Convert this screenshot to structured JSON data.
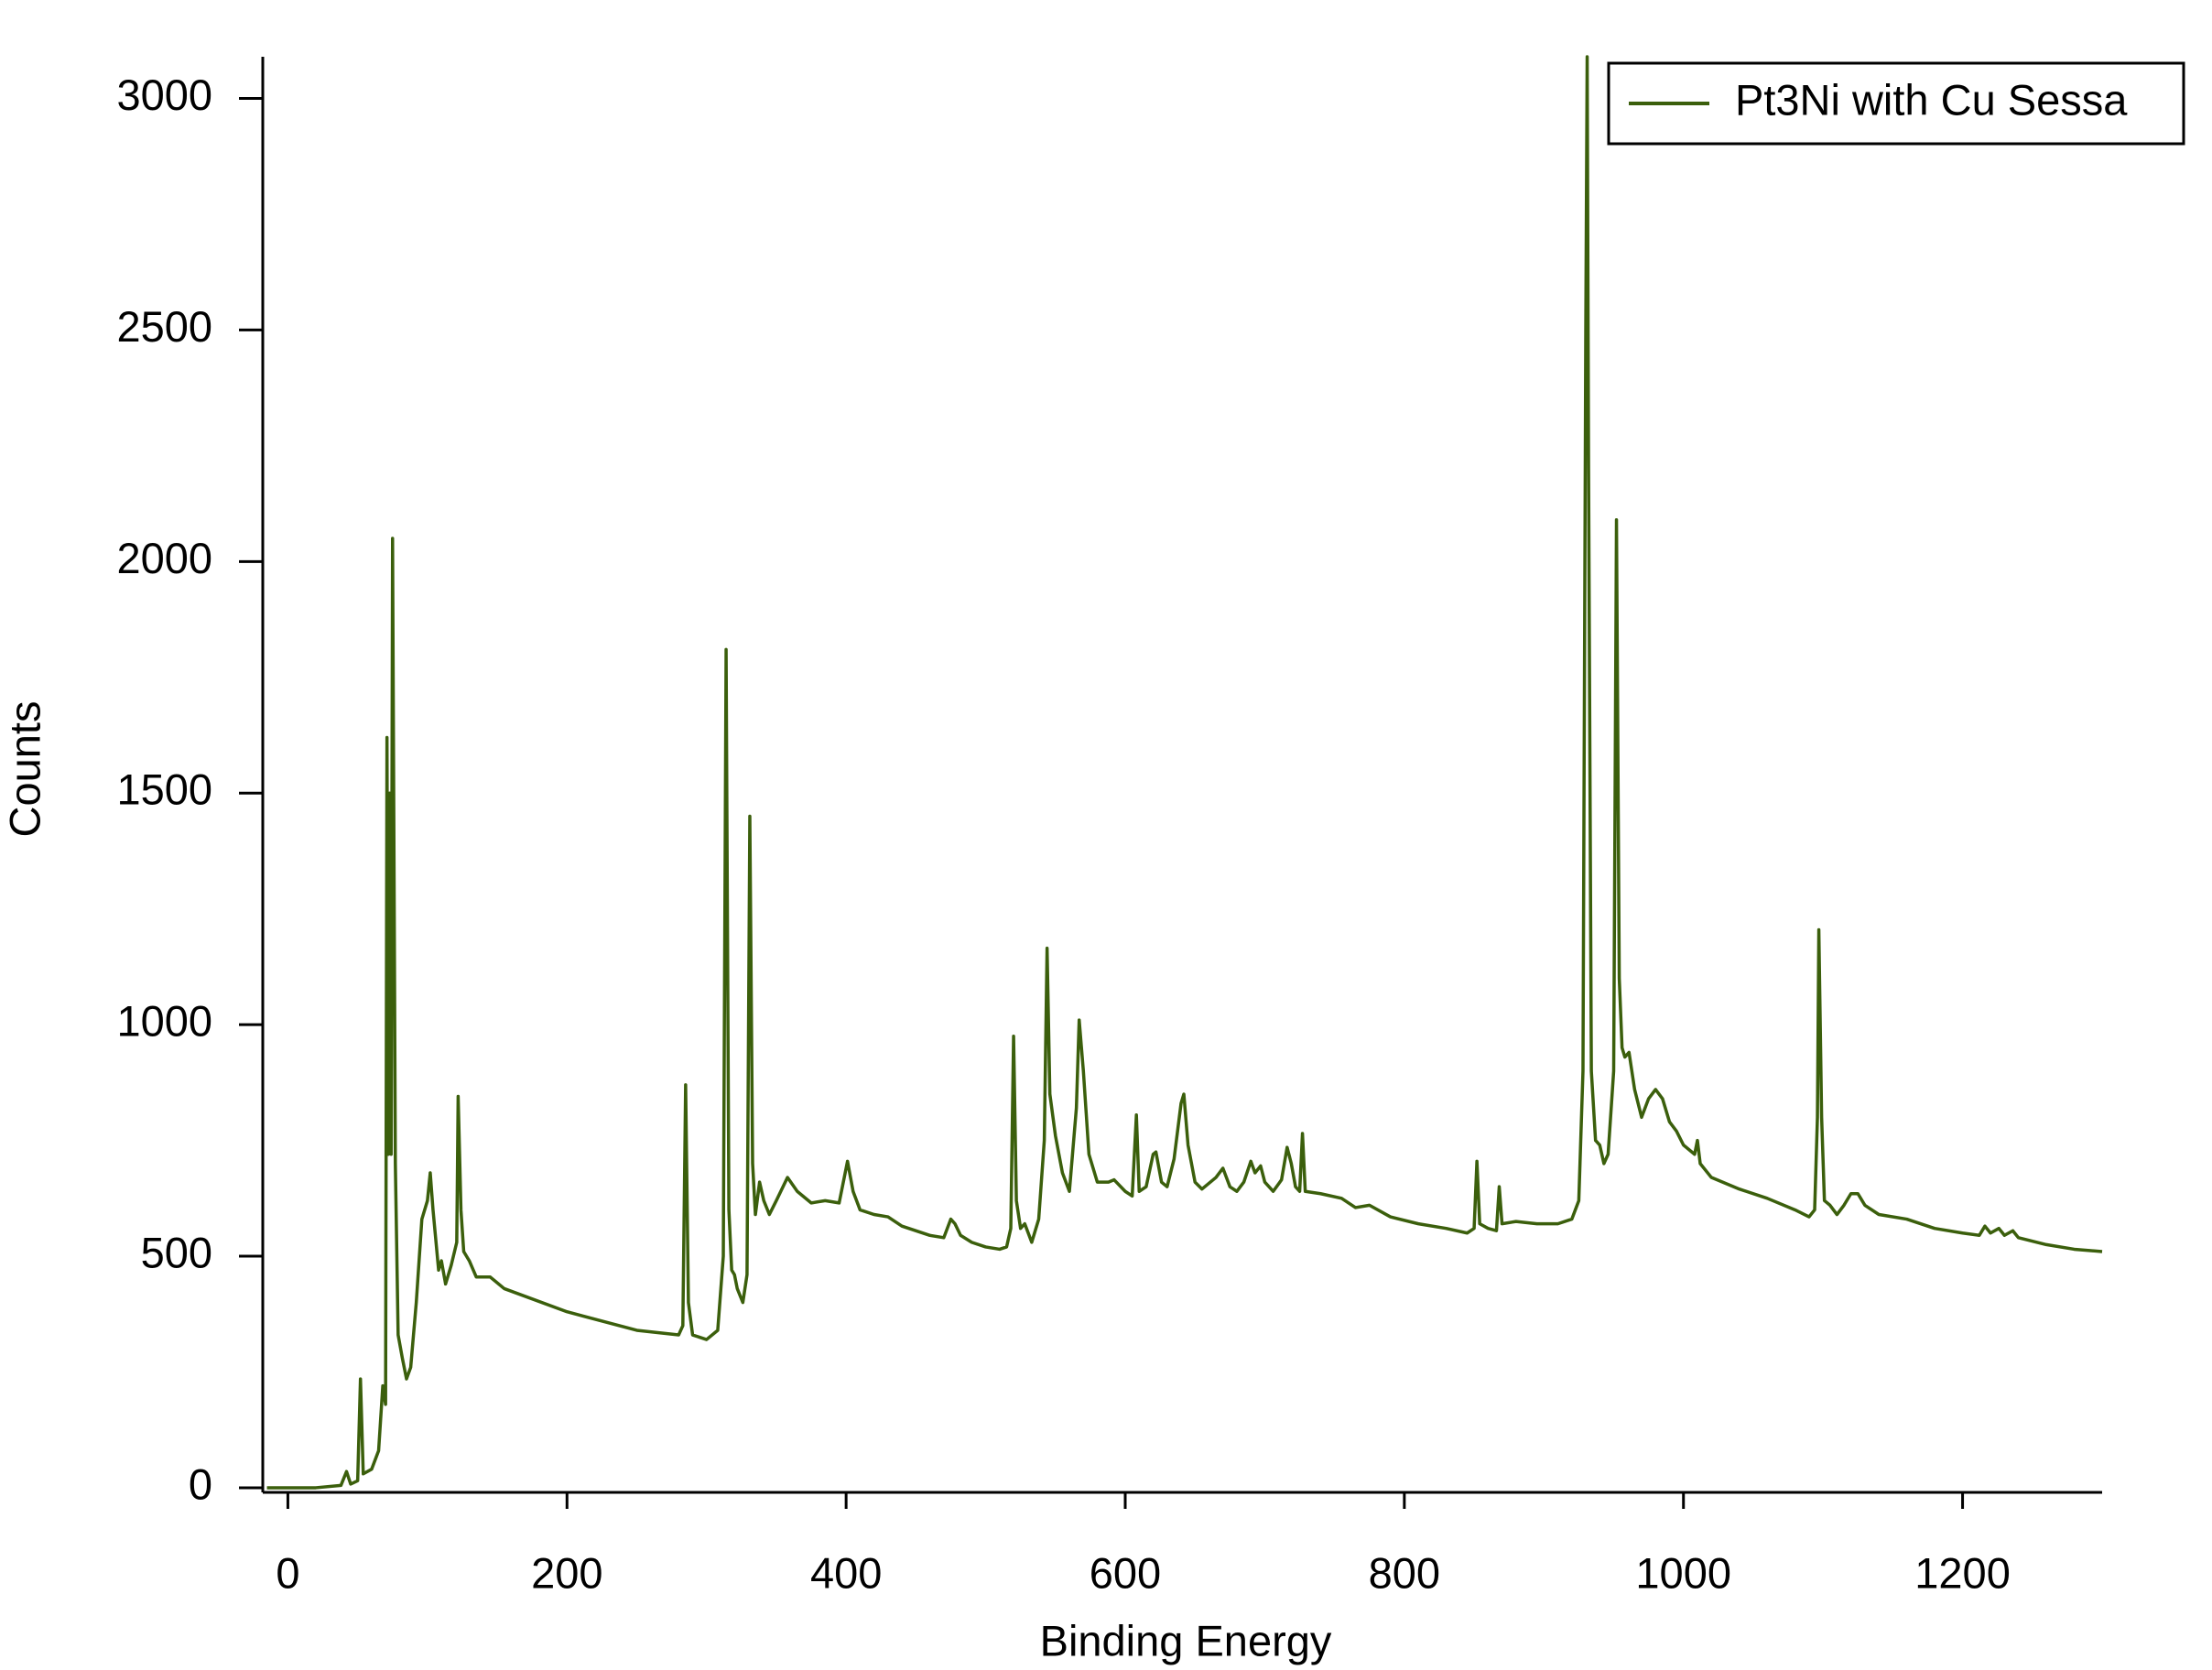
{
  "chart_data": {
    "type": "line",
    "x_label": "Binding Energy",
    "y_label": "Counts",
    "xlim": [
      -18,
      1300
    ],
    "ylim": [
      -10,
      3090
    ],
    "xticks": [
      0,
      200,
      400,
      600,
      800,
      1000,
      1200
    ],
    "yticks": [
      0,
      500,
      1000,
      1500,
      2000,
      2500,
      3000
    ],
    "legend": "top-right",
    "x": [
      -15,
      20,
      38,
      42,
      45,
      50,
      52,
      54,
      60,
      65,
      68,
      70,
      71,
      72,
      73,
      74,
      75,
      77,
      79,
      82,
      85,
      88,
      92,
      96,
      100,
      102,
      104,
      108,
      110,
      113,
      117,
      121,
      122,
      124,
      126,
      130,
      135,
      145,
      155,
      200,
      250,
      280,
      283,
      285,
      287,
      290,
      300,
      308,
      312,
      314,
      316,
      318,
      320,
      322,
      326,
      329,
      331,
      333,
      335,
      338,
      341,
      345,
      350,
      358,
      365,
      375,
      385,
      395,
      401,
      405,
      410,
      420,
      430,
      440,
      460,
      470,
      475,
      478,
      482,
      490,
      500,
      510,
      515,
      518,
      520,
      522,
      525,
      528,
      533,
      538,
      542,
      544,
      546,
      550,
      555,
      560,
      565,
      567,
      570,
      574,
      580,
      588,
      592,
      600,
      605,
      608,
      610,
      615,
      620,
      622,
      626,
      630,
      635,
      640,
      642,
      645,
      650,
      655,
      665,
      670,
      675,
      680,
      685,
      690,
      693,
      697,
      700,
      706,
      712,
      716,
      719,
      722,
      725,
      727,
      729,
      740,
      755,
      765,
      775,
      790,
      810,
      830,
      845,
      850,
      852,
      854,
      860,
      866,
      868,
      870,
      880,
      895,
      910,
      920,
      925,
      928,
      930,
      931,
      932,
      934,
      937,
      940,
      943,
      946,
      950,
      952,
      954,
      956,
      958,
      961,
      965,
      970,
      975,
      980,
      985,
      990,
      995,
      1000,
      1008,
      1010,
      1012,
      1020,
      1040,
      1060,
      1080,
      1090,
      1094,
      1096,
      1097,
      1099,
      1101,
      1105,
      1110,
      1115,
      1120,
      1125,
      1130,
      1140,
      1160,
      1180,
      1200,
      1212,
      1216,
      1220,
      1226,
      1230,
      1236,
      1240,
      1260,
      1280,
      1300
    ],
    "series": [
      {
        "name": "Pt3Ni with Cu Sessa",
        "color": "#3b5f0c",
        "values": [
          0,
          0,
          5,
          35,
          8,
          15,
          235,
          30,
          40,
          80,
          220,
          180,
          1620,
          720,
          1500,
          720,
          2050,
          700,
          330,
          280,
          235,
          260,
          400,
          580,
          620,
          680,
          600,
          470,
          490,
          440,
          480,
          530,
          845,
          600,
          510,
          490,
          455,
          455,
          430,
          380,
          340,
          330,
          350,
          870,
          400,
          330,
          320,
          340,
          500,
          1810,
          600,
          470,
          460,
          430,
          400,
          460,
          1450,
          700,
          590,
          660,
          620,
          590,
          620,
          670,
          640,
          615,
          620,
          615,
          705,
          640,
          600,
          590,
          585,
          565,
          545,
          540,
          580,
          570,
          545,
          530,
          520,
          515,
          520,
          560,
          975,
          620,
          560,
          570,
          530,
          580,
          750,
          1165,
          850,
          760,
          680,
          640,
          820,
          1010,
          900,
          720,
          660,
          660,
          665,
          640,
          630,
          805,
          640,
          650,
          720,
          725,
          660,
          650,
          710,
          830,
          850,
          740,
          660,
          645,
          670,
          690,
          650,
          640,
          660,
          705,
          680,
          695,
          660,
          640,
          665,
          735,
          700,
          650,
          640,
          765,
          640,
          635,
          625,
          605,
          610,
          585,
          570,
          560,
          550,
          560,
          705,
          570,
          560,
          555,
          650,
          570,
          575,
          570,
          570,
          580,
          620,
          900,
          2500,
          3090,
          2200,
          900,
          750,
          740,
          700,
          720,
          900,
          2090,
          1100,
          950,
          930,
          940,
          860,
          800,
          840,
          860,
          840,
          790,
          770,
          740,
          720,
          750,
          700,
          670,
          645,
          625,
          600,
          585,
          600,
          800,
          1205,
          800,
          620,
          610,
          590,
          610,
          635,
          635,
          610,
          590,
          580,
          560,
          550,
          545,
          565,
          550,
          560,
          545,
          555,
          540,
          525,
          515,
          510
        ]
      }
    ]
  }
}
